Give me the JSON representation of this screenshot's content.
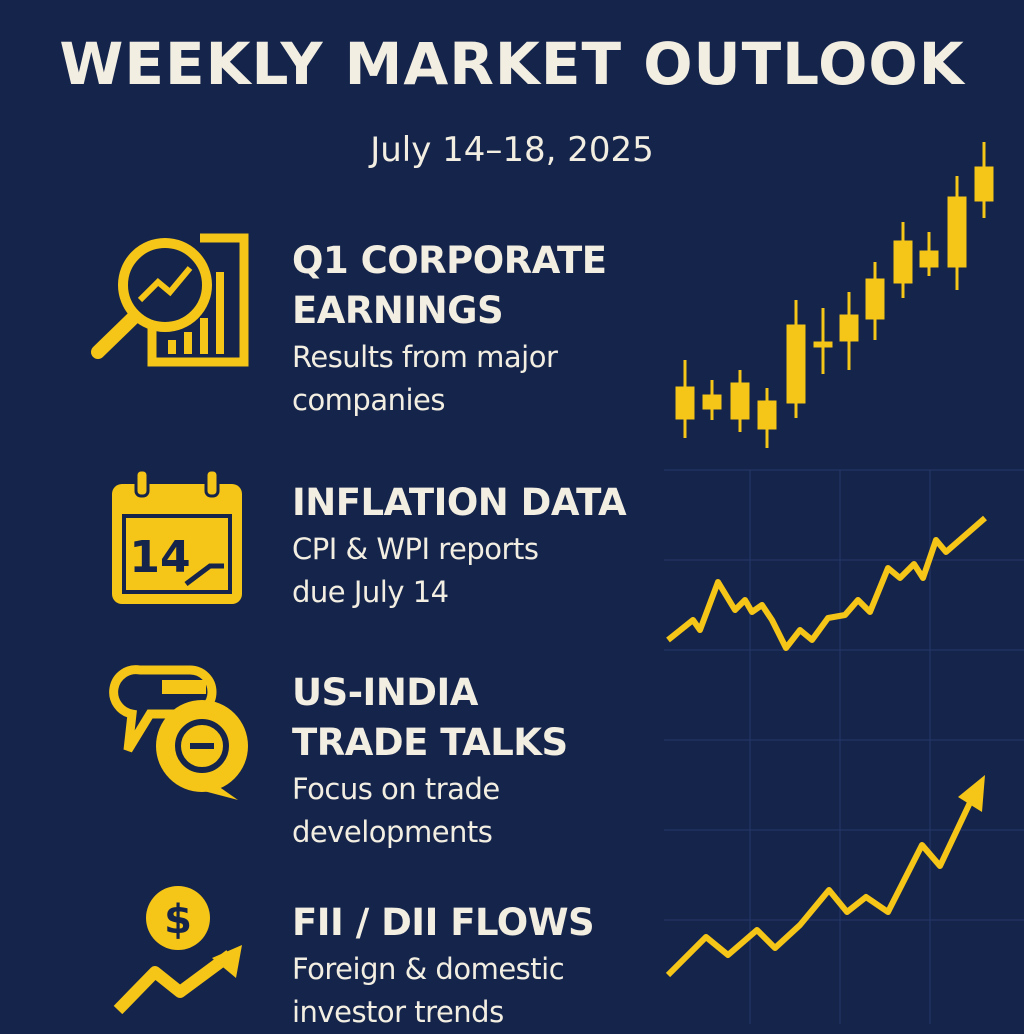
{
  "header": {
    "title": "WEEKLY MARKET OUTLOOK",
    "subtitle": "July 14–18, 2025"
  },
  "items": [
    {
      "title_lines": [
        "Q1 CORPORATE",
        "EARNINGS"
      ],
      "description_lines": [
        "Results from major",
        "companies"
      ]
    },
    {
      "title_lines": [
        "INFLATION DATA"
      ],
      "description_lines": [
        "CPI & WPI reports",
        "due July 14"
      ],
      "icon_label": "14"
    },
    {
      "title_lines": [
        "US-INDIA",
        "TRADE TALKS"
      ],
      "description_lines": [
        "Focus on trade",
        "developments"
      ]
    },
    {
      "title_lines": [
        "FII / DII FLOWS"
      ],
      "description_lines": [
        "Foreign & domestic",
        "investor trends"
      ],
      "icon_label": "$"
    }
  ]
}
